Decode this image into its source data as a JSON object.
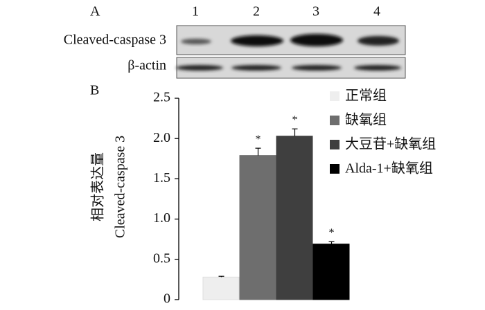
{
  "blot": {
    "label": "A",
    "lanes": [
      "1",
      "2",
      "3",
      "4"
    ],
    "rows": [
      "Cleaved-caspase 3",
      "β-actin"
    ]
  },
  "chart_data": {
    "type": "bar",
    "label": "B",
    "ylabel": [
      "相对表达量",
      "Cleaved-caspase 3"
    ],
    "series": [
      {
        "name": "正常组",
        "color": "#eeeeee",
        "values": [
          0.28
        ],
        "errors": [
          0.01
        ],
        "marker": null
      },
      {
        "name": "缺氧组",
        "color": "#6e6e6e",
        "values": [
          1.79
        ],
        "errors": [
          0.09
        ],
        "marker": "*"
      },
      {
        "name": "大豆苷+缺氧组",
        "color": "#3f3f3f",
        "values": [
          2.03
        ],
        "errors": [
          0.09
        ],
        "marker": "*"
      },
      {
        "name": "Alda-1+缺氧组",
        "color": "#000000",
        "values": [
          0.69
        ],
        "errors": [
          0.03
        ],
        "marker": "*"
      }
    ],
    "ylim": [
      0,
      2.5
    ],
    "yticks": [
      0,
      0.5,
      {
        "value": 1,
        "label": "1.0"
      },
      1.5,
      {
        "value": 2,
        "label": "2.0"
      },
      2.5
    ]
  }
}
